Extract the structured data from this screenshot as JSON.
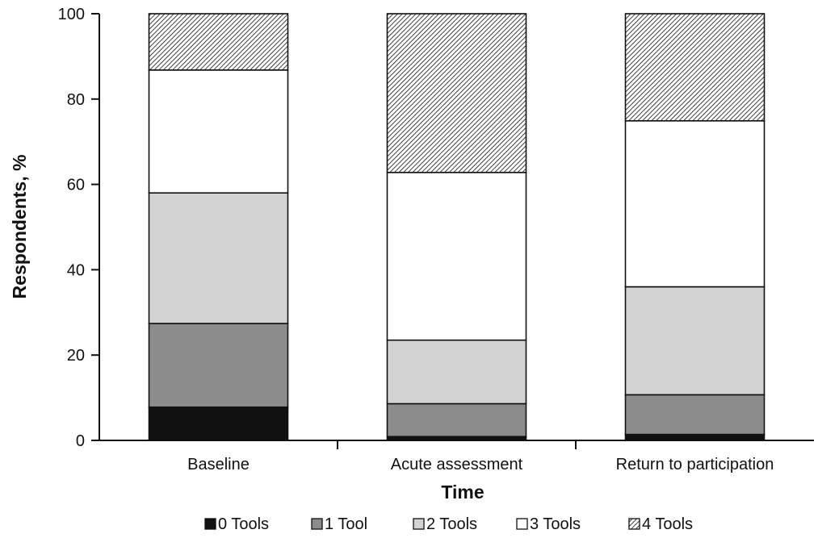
{
  "chart_data": {
    "type": "bar",
    "stacked": true,
    "xlabel": "Time",
    "ylabel": "Respondents, %",
    "ylim": [
      0,
      100
    ],
    "yticks": [
      0,
      20,
      40,
      60,
      80,
      100
    ],
    "categories": [
      "Baseline",
      "Acute assessment",
      "Return to participation"
    ],
    "series": [
      {
        "name": "0 Tools",
        "values": [
          7.8,
          0.9,
          1.4
        ],
        "color": "#111111",
        "pattern": "solid"
      },
      {
        "name": "1 Tool",
        "values": [
          19.6,
          7.7,
          9.3
        ],
        "color": "#8c8c8c",
        "pattern": "solid"
      },
      {
        "name": "2 Tools",
        "values": [
          30.6,
          14.9,
          25.3
        ],
        "color": "#d2d2d2",
        "pattern": "solid"
      },
      {
        "name": "3 Tools",
        "values": [
          28.8,
          39.3,
          38.9
        ],
        "color": "#ffffff",
        "pattern": "solid"
      },
      {
        "name": "4 Tools",
        "values": [
          13.2,
          37.2,
          25.1
        ],
        "color": "#ffffff",
        "pattern": "hatch"
      }
    ],
    "legend_position": "bottom",
    "grid": false
  }
}
